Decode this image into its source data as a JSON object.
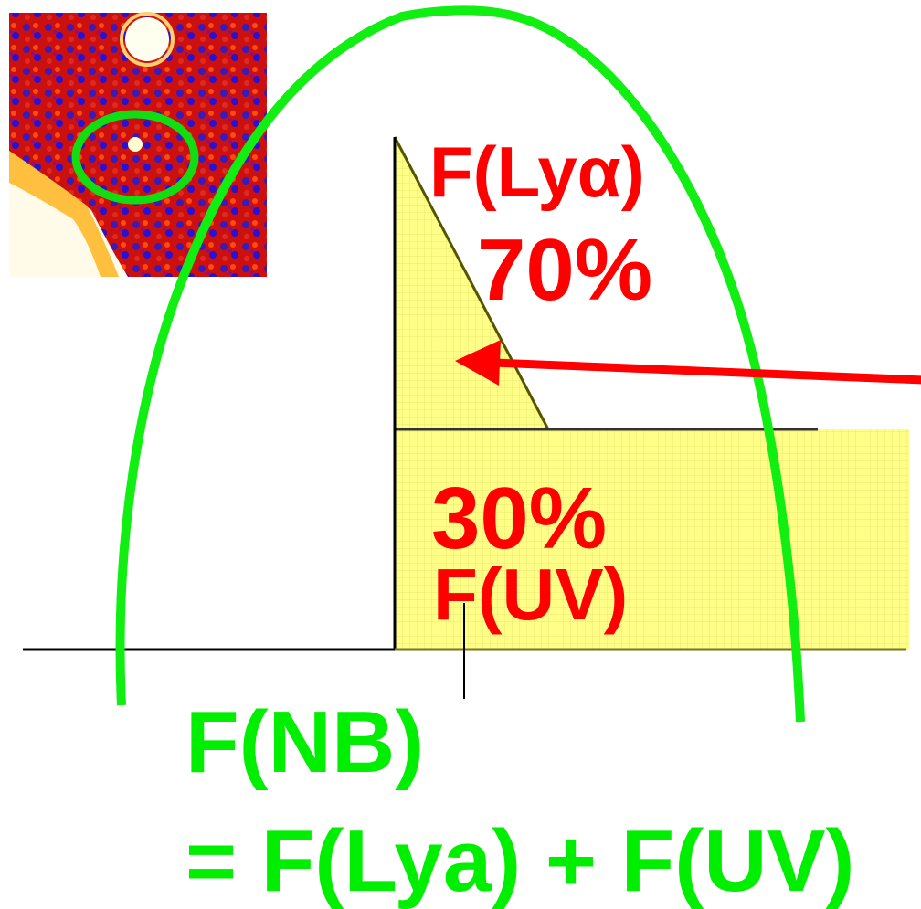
{
  "labels": {
    "lya_name": "F(Lyα)",
    "lya_fraction": "70%",
    "uv_fraction": "30%",
    "uv_name": "F(UV)",
    "nb_name": "F(NB)",
    "nb_equation": "= F(Lya) + F(UV)"
  }
}
